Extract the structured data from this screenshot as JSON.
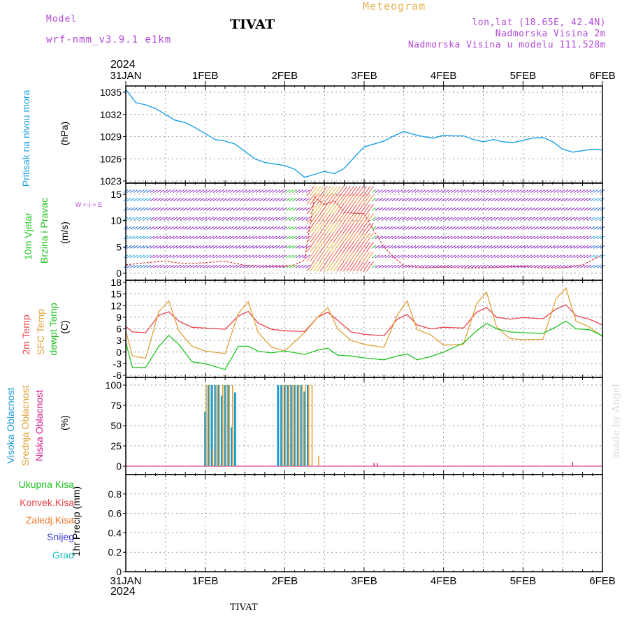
{
  "header": {
    "model_label": "Model",
    "model_name": "wrf-nmm_v3.9.1 e1km",
    "station": "TIVAT",
    "product": "Meteogram",
    "coords": "lon,lat (18.65E, 42.4N)",
    "elevation": "Nadmorska Visina 2m",
    "model_elevation": "Nadmorska Visina u modelu 111.528m",
    "year": "2024",
    "footer_station": "TIVAT",
    "credit": "made by Angel"
  },
  "colors": {
    "pressure": "#1aa0e6",
    "temp2m": "#e8454b",
    "sfc_temp": "#e2a23a",
    "dewpt": "#22c422",
    "high_cloud": "#1a9ad6",
    "mid_cloud": "#e2a23a",
    "low_cloud": "#d81b8c",
    "header_purple": "#b24ad6",
    "header_orange": "#e8b45a"
  },
  "time_axis": {
    "tick_labels": [
      "31JAN",
      "1FEB",
      "2FEB",
      "3FEB",
      "4FEB",
      "5FEB",
      "6FEB"
    ],
    "start": "2024-01-31T00",
    "end": "2024-02-06T00"
  },
  "panel_labels": {
    "pressure": [
      "Pritisak na nivou mora",
      "(hPa)"
    ],
    "wind": [
      "10m Vjetar",
      "Brzina i Pravac",
      "(m/s)"
    ],
    "wind_compass": "W <-|-> E",
    "temp": [
      "2m Temp",
      "SFC Temp",
      "dewpt Temp",
      "(C)"
    ],
    "cloud": [
      "Visoka Oblacnost",
      "Srednja Oblacnost",
      "Niska Oblacnost",
      "(%)"
    ],
    "precip_legend": [
      "Ukupna Kisa",
      "Konvek.Kisa",
      "Zaledj.Kisa",
      "Snijeg",
      "Grad"
    ],
    "precip_axis": "1hr Precip (mm)"
  },
  "chart_data": [
    {
      "type": "line",
      "panel": "pressure",
      "ylim": [
        1023,
        1036
      ],
      "yticks": [
        1023,
        1026,
        1029,
        1032,
        1035
      ],
      "grid": true,
      "series": [
        {
          "key": "slp",
          "x": [
            "2024-01-31T00",
            "2024-01-31T03",
            "2024-01-31T06",
            "2024-01-31T09",
            "2024-01-31T12",
            "2024-01-31T15",
            "2024-01-31T18",
            "2024-01-31T21",
            "2024-02-01T00",
            "2024-02-01T03",
            "2024-02-01T06",
            "2024-02-01T09",
            "2024-02-01T12",
            "2024-02-01T15",
            "2024-02-01T18",
            "2024-02-01T21",
            "2024-02-02T00",
            "2024-02-02T03",
            "2024-02-02T06",
            "2024-02-02T09",
            "2024-02-02T12",
            "2024-02-02T15",
            "2024-02-02T18",
            "2024-02-02T21",
            "2024-02-03T00",
            "2024-02-03T03",
            "2024-02-03T06",
            "2024-02-03T09",
            "2024-02-03T12",
            "2024-02-03T15",
            "2024-02-03T18",
            "2024-02-03T21",
            "2024-02-04T00",
            "2024-02-04T03",
            "2024-02-04T06",
            "2024-02-04T09",
            "2024-02-04T12",
            "2024-02-04T15",
            "2024-02-04T18",
            "2024-02-04T21",
            "2024-02-05T00",
            "2024-02-05T03",
            "2024-02-05T06",
            "2024-02-05T09",
            "2024-02-05T12",
            "2024-02-05T15",
            "2024-02-05T18",
            "2024-02-05T21",
            "2024-02-06T00"
          ],
          "values": [
            1035.4,
            1033.6,
            1033.3,
            1032.8,
            1032.0,
            1031.2,
            1030.9,
            1030.2,
            1029.4,
            1028.6,
            1028.4,
            1028.0,
            1027.0,
            1026.0,
            1025.5,
            1025.3,
            1025.1,
            1024.6,
            1023.5,
            1023.9,
            1024.3,
            1024.0,
            1024.7,
            1026.2,
            1027.6,
            1028.0,
            1028.4,
            1029.1,
            1029.7,
            1029.3,
            1029.0,
            1028.8,
            1029.2,
            1029.1,
            1029.1,
            1028.6,
            1028.3,
            1028.6,
            1028.3,
            1028.2,
            1028.5,
            1028.8,
            1028.9,
            1028.3,
            1027.3,
            1026.9,
            1027.1,
            1027.3,
            1027.2
          ]
        }
      ]
    },
    {
      "type": "line",
      "panel": "wind",
      "ylim": [
        0,
        16
      ],
      "yticks": [
        0,
        5,
        10,
        15
      ],
      "grid": true,
      "description_series": "wind speed (red dashed); barbs colored by speed",
      "series": [
        {
          "key": "wind_speed",
          "x": [
            "2024-01-31T00",
            "2024-01-31T06",
            "2024-01-31T12",
            "2024-01-31T18",
            "2024-02-01T00",
            "2024-02-01T06",
            "2024-02-01T12",
            "2024-02-01T18",
            "2024-02-02T00",
            "2024-02-02T03",
            "2024-02-02T06",
            "2024-02-02T09",
            "2024-02-02T12",
            "2024-02-02T15",
            "2024-02-02T18",
            "2024-02-02T21",
            "2024-02-03T00",
            "2024-02-03T03",
            "2024-02-03T06",
            "2024-02-03T09",
            "2024-02-03T12",
            "2024-02-03T18",
            "2024-02-04T00",
            "2024-02-04T06",
            "2024-02-04T12",
            "2024-02-04T18",
            "2024-02-05T00",
            "2024-02-05T06",
            "2024-02-05T12",
            "2024-02-05T18",
            "2024-02-06T00"
          ],
          "values": [
            1.6,
            2.0,
            2.3,
            1.8,
            2.0,
            2.3,
            1.5,
            1.3,
            1.3,
            1.6,
            2.5,
            14.5,
            13.0,
            13.8,
            11.6,
            11.4,
            11.3,
            8.0,
            5.0,
            3.0,
            1.5,
            1.0,
            1.2,
            1.0,
            1.0,
            1.2,
            1.3,
            1.0,
            1.0,
            1.6,
            3.5
          ]
        }
      ]
    },
    {
      "type": "line",
      "panel": "temperature",
      "ylim": [
        -6,
        18
      ],
      "yticks": [
        -6,
        -3,
        0,
        3,
        6,
        9,
        12,
        15,
        18
      ],
      "grid": true,
      "series": [
        {
          "key": "t2m",
          "x": [
            "2024-01-31T00",
            "2024-01-31T02",
            "2024-01-31T06",
            "2024-01-31T10",
            "2024-01-31T13",
            "2024-01-31T16",
            "2024-01-31T20",
            "2024-02-01T00",
            "2024-02-01T06",
            "2024-02-01T10",
            "2024-02-01T13",
            "2024-02-01T16",
            "2024-02-01T20",
            "2024-02-02T00",
            "2024-02-02T06",
            "2024-02-02T10",
            "2024-02-02T13",
            "2024-02-02T16",
            "2024-02-02T20",
            "2024-02-03T00",
            "2024-02-03T06",
            "2024-02-03T10",
            "2024-02-03T13",
            "2024-02-03T16",
            "2024-02-03T20",
            "2024-02-04T00",
            "2024-02-04T06",
            "2024-02-04T10",
            "2024-02-04T13",
            "2024-02-04T16",
            "2024-02-04T20",
            "2024-02-05T00",
            "2024-02-05T06",
            "2024-02-05T10",
            "2024-02-05T13",
            "2024-02-05T16",
            "2024-02-05T20",
            "2024-02-06T00"
          ],
          "values": [
            6.6,
            5.2,
            5.0,
            9.5,
            10.4,
            8.0,
            6.4,
            6.2,
            5.9,
            9.3,
            10.5,
            7.5,
            5.9,
            5.5,
            5.3,
            9.0,
            10.3,
            8.2,
            5.2,
            4.6,
            4.2,
            8.5,
            9.7,
            7.0,
            6.0,
            6.4,
            6.2,
            10.3,
            11.5,
            9.0,
            8.5,
            8.9,
            8.6,
            11.1,
            12.2,
            9.4,
            8.5,
            7.0
          ]
        },
        {
          "key": "sfc",
          "x": [
            "2024-01-31T00",
            "2024-01-31T02",
            "2024-01-31T06",
            "2024-01-31T10",
            "2024-01-31T13",
            "2024-01-31T16",
            "2024-01-31T20",
            "2024-02-01T00",
            "2024-02-01T06",
            "2024-02-01T10",
            "2024-02-01T13",
            "2024-02-01T16",
            "2024-02-01T20",
            "2024-02-02T00",
            "2024-02-02T06",
            "2024-02-02T10",
            "2024-02-02T13",
            "2024-02-02T16",
            "2024-02-02T20",
            "2024-02-03T00",
            "2024-02-03T06",
            "2024-02-03T10",
            "2024-02-03T13",
            "2024-02-03T16",
            "2024-02-03T20",
            "2024-02-04T00",
            "2024-02-04T06",
            "2024-02-04T10",
            "2024-02-04T13",
            "2024-02-04T16",
            "2024-02-04T20",
            "2024-02-05T00",
            "2024-02-05T06",
            "2024-02-05T10",
            "2024-02-05T13",
            "2024-02-05T16",
            "2024-02-05T20",
            "2024-02-06T00"
          ],
          "values": [
            5.5,
            -1.0,
            -1.6,
            10.5,
            13.2,
            5.5,
            1.5,
            0.3,
            -0.4,
            10.0,
            13.0,
            5.0,
            1.3,
            0.3,
            5.0,
            9.0,
            11.5,
            6.0,
            3.0,
            2.0,
            1.2,
            9.5,
            13.2,
            5.8,
            4.5,
            1.8,
            2.0,
            12.5,
            15.5,
            6.5,
            3.5,
            3.2,
            3.3,
            13.8,
            16.5,
            8.0,
            6.5,
            4.0
          ]
        },
        {
          "key": "dewpt",
          "x": [
            "2024-01-31T00",
            "2024-01-31T02",
            "2024-01-31T06",
            "2024-01-31T10",
            "2024-01-31T13",
            "2024-01-31T16",
            "2024-01-31T20",
            "2024-02-01T00",
            "2024-02-01T06",
            "2024-02-01T10",
            "2024-02-01T13",
            "2024-02-01T16",
            "2024-02-01T20",
            "2024-02-02T00",
            "2024-02-02T06",
            "2024-02-02T10",
            "2024-02-02T13",
            "2024-02-02T16",
            "2024-02-02T20",
            "2024-02-03T00",
            "2024-02-03T06",
            "2024-02-03T10",
            "2024-02-03T13",
            "2024-02-03T16",
            "2024-02-03T20",
            "2024-02-04T00",
            "2024-02-04T06",
            "2024-02-04T10",
            "2024-02-04T13",
            "2024-02-04T16",
            "2024-02-04T20",
            "2024-02-05T00",
            "2024-02-05T06",
            "2024-02-05T10",
            "2024-02-05T13",
            "2024-02-05T16",
            "2024-02-05T20",
            "2024-02-06T00"
          ],
          "values": [
            2.5,
            -4.0,
            -4.0,
            1.5,
            4.3,
            2.0,
            -2.5,
            -3.0,
            -4.5,
            1.5,
            1.5,
            0.2,
            -0.2,
            0.3,
            -0.6,
            0.5,
            1.0,
            -0.8,
            -1.0,
            -1.5,
            -2.0,
            -1.0,
            -0.5,
            -2.0,
            -1.2,
            0.0,
            2.3,
            5.5,
            7.4,
            6.0,
            5.2,
            5.0,
            4.8,
            6.5,
            8.0,
            6.0,
            5.8,
            4.2
          ]
        }
      ]
    },
    {
      "type": "bar",
      "panel": "cloud",
      "ylim": [
        0,
        110
      ],
      "yticks": [
        0,
        25,
        50,
        75,
        100
      ],
      "grid": true,
      "bars": [
        {
          "t": "2024-02-01T00",
          "high": 67,
          "mid": 100
        },
        {
          "t": "2024-02-01T01",
          "high": 100,
          "mid": 100
        },
        {
          "t": "2024-02-01T02",
          "high": 100,
          "mid": 20
        },
        {
          "t": "2024-02-01T03",
          "high": 100,
          "mid": 100
        },
        {
          "t": "2024-02-01T04",
          "high": 100,
          "mid": 100
        },
        {
          "t": "2024-02-01T05",
          "high": 87,
          "mid": 100
        },
        {
          "t": "2024-02-01T06",
          "high": 100,
          "mid": 100
        },
        {
          "t": "2024-02-01T07",
          "high": 100,
          "mid": 100
        },
        {
          "t": "2024-02-01T08",
          "high": 48,
          "mid": 100
        },
        {
          "t": "2024-02-01T09",
          "high": 91,
          "mid": 0
        },
        {
          "t": "2024-02-01T22",
          "high": 100,
          "mid": 0
        },
        {
          "t": "2024-02-01T23",
          "high": 100,
          "mid": 100
        },
        {
          "t": "2024-02-02T00",
          "high": 100,
          "mid": 100
        },
        {
          "t": "2024-02-02T01",
          "high": 100,
          "mid": 100
        },
        {
          "t": "2024-02-02T02",
          "high": 100,
          "mid": 100
        },
        {
          "t": "2024-02-02T03",
          "high": 100,
          "mid": 100
        },
        {
          "t": "2024-02-02T04",
          "high": 100,
          "mid": 100
        },
        {
          "t": "2024-02-02T05",
          "high": 100,
          "mid": 100
        },
        {
          "t": "2024-02-02T06",
          "high": 92,
          "mid": 100
        },
        {
          "t": "2024-02-02T07",
          "high": 100,
          "mid": 100
        },
        {
          "t": "2024-02-02T08",
          "high": 0,
          "mid": 100
        },
        {
          "t": "2024-02-02T10",
          "high": 0,
          "mid": 13
        }
      ],
      "low_bars": [
        {
          "t": "2024-02-03T03",
          "low": 4
        },
        {
          "t": "2024-02-03T04",
          "low": 4
        },
        {
          "t": "2024-02-05T15",
          "low": 5
        }
      ]
    },
    {
      "type": "bar",
      "panel": "precip",
      "ylim": [
        0,
        1
      ],
      "yticks": [
        0,
        0.2,
        0.4,
        0.6,
        0.8
      ],
      "grid": true,
      "values": []
    }
  ]
}
